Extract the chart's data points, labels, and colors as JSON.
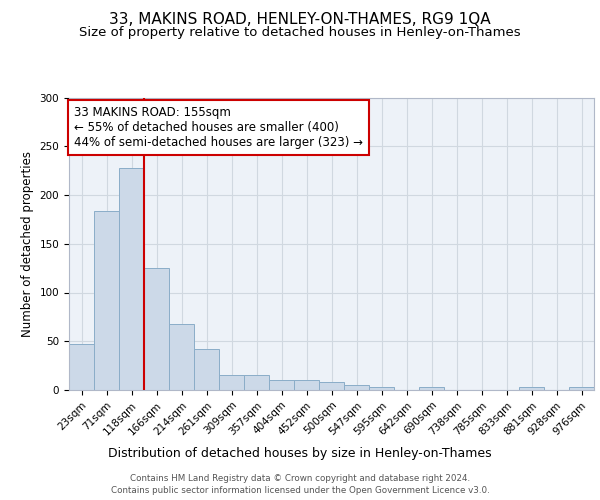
{
  "title": "33, MAKINS ROAD, HENLEY-ON-THAMES, RG9 1QA",
  "subtitle": "Size of property relative to detached houses in Henley-on-Thames",
  "xlabel": "Distribution of detached houses by size in Henley-on-Thames",
  "ylabel": "Number of detached properties",
  "categories": [
    "23sqm",
    "71sqm",
    "118sqm",
    "166sqm",
    "214sqm",
    "261sqm",
    "309sqm",
    "357sqm",
    "404sqm",
    "452sqm",
    "500sqm",
    "547sqm",
    "595sqm",
    "642sqm",
    "690sqm",
    "738sqm",
    "785sqm",
    "833sqm",
    "881sqm",
    "928sqm",
    "976sqm"
  ],
  "values": [
    47,
    184,
    228,
    125,
    68,
    42,
    15,
    15,
    10,
    10,
    8,
    5,
    3,
    0,
    3,
    0,
    0,
    0,
    3,
    0,
    3
  ],
  "bar_color": "#ccd9e8",
  "bar_edge_color": "#8aadc8",
  "grid_color": "#d0d8e0",
  "bg_color": "#edf2f8",
  "red_line_x": 2.5,
  "annotation_text": "33 MAKINS ROAD: 155sqm\n← 55% of detached houses are smaller (400)\n44% of semi-detached houses are larger (323) →",
  "annotation_box_color": "white",
  "annotation_edge_color": "#cc0000",
  "ylim": [
    0,
    300
  ],
  "yticks": [
    0,
    50,
    100,
    150,
    200,
    250,
    300
  ],
  "title_fontsize": 11,
  "subtitle_fontsize": 9.5,
  "xlabel_fontsize": 9,
  "ylabel_fontsize": 8.5,
  "tick_fontsize": 7.5,
  "annot_fontsize": 8.5,
  "footer_line1": "Contains HM Land Registry data © Crown copyright and database right 2024.",
  "footer_line2": "Contains public sector information licensed under the Open Government Licence v3.0."
}
